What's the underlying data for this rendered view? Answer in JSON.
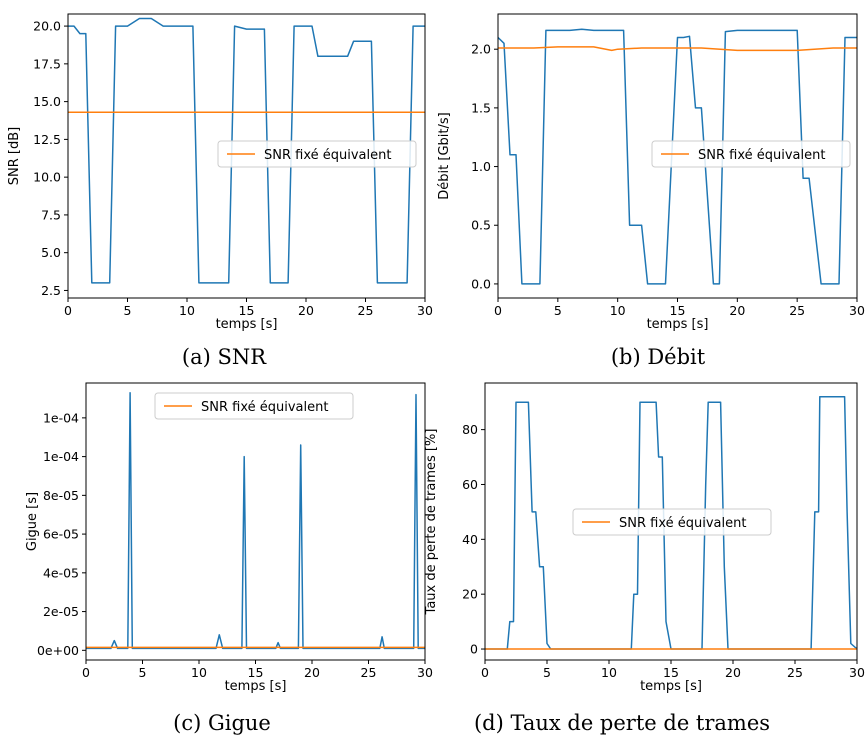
{
  "chart_data": [
    {
      "type": "line",
      "caption": "(a) SNR",
      "xlabel": "temps [s]",
      "ylabel": "SNR [dB]",
      "xlim": [
        0,
        30
      ],
      "ylim": [
        2.0,
        20.8
      ],
      "xticks": [
        0,
        5,
        10,
        15,
        20,
        25,
        30
      ],
      "xtick_labels": [
        "0",
        "5",
        "10",
        "15",
        "20",
        "25",
        "30"
      ],
      "yticks": [
        2.5,
        5.0,
        7.5,
        10.0,
        12.5,
        15.0,
        17.5,
        20.0
      ],
      "ytick_labels": [
        "2.5",
        "5.0",
        "7.5",
        "10.0",
        "12.5",
        "15.0",
        "17.5",
        "20.0"
      ],
      "legend": {
        "label": "SNR fixé équivalent",
        "placement": "center-right"
      },
      "series": [
        {
          "color": "#1f77b4",
          "x": [
            0,
            0.5,
            1,
            1.5,
            2,
            3.5,
            4,
            5,
            6,
            7,
            8,
            9,
            10,
            10.5,
            11,
            12,
            13,
            13.5,
            14,
            15,
            16,
            16.5,
            17,
            18,
            18.5,
            19,
            20,
            20.5,
            21,
            22,
            23,
            23.5,
            24,
            25,
            25.5,
            26,
            27,
            28,
            28.5,
            29,
            30
          ],
          "y": [
            20,
            20,
            19.5,
            19.5,
            3,
            3,
            20,
            20,
            20.5,
            20.5,
            20,
            20,
            20,
            20,
            3,
            3,
            3,
            3,
            20,
            19.8,
            19.8,
            19.8,
            3,
            3,
            3,
            20,
            20,
            20,
            18,
            18,
            18,
            18,
            19,
            19,
            19,
            3,
            3,
            3,
            3,
            20,
            20
          ]
        },
        {
          "color": "#ff7f0e",
          "x": [
            0,
            30
          ],
          "y": [
            14.3,
            14.3
          ]
        }
      ]
    },
    {
      "type": "line",
      "caption": "(b) Débit",
      "xlabel": "temps [s]",
      "ylabel": "Débit [Gbit/s]",
      "xlim": [
        0,
        30
      ],
      "ylim": [
        -0.12,
        2.3
      ],
      "xticks": [
        0,
        5,
        10,
        15,
        20,
        25,
        30
      ],
      "xtick_labels": [
        "0",
        "5",
        "10",
        "15",
        "20",
        "25",
        "30"
      ],
      "yticks": [
        0.0,
        0.5,
        1.0,
        1.5,
        2.0
      ],
      "ytick_labels": [
        "0.0",
        "0.5",
        "1.0",
        "1.5",
        "2.0"
      ],
      "legend": {
        "label": "SNR fixé équivalent",
        "placement": "center-right"
      },
      "series": [
        {
          "color": "#1f77b4",
          "x": [
            0,
            0.5,
            1,
            1.5,
            2,
            3.5,
            4,
            5,
            6,
            7,
            8,
            9,
            10,
            10.5,
            11,
            12,
            12.5,
            13,
            14,
            15,
            15.5,
            16,
            16.5,
            17,
            18,
            18.5,
            19,
            20,
            21,
            22,
            23,
            24,
            25,
            25.5,
            26,
            27,
            28,
            28.5,
            29,
            30
          ],
          "y": [
            2.1,
            2.05,
            1.1,
            1.1,
            0,
            0,
            2.16,
            2.16,
            2.16,
            2.17,
            2.16,
            2.16,
            2.16,
            2.16,
            0.5,
            0.5,
            0,
            0,
            0,
            2.1,
            2.1,
            2.11,
            1.5,
            1.5,
            0,
            0,
            2.15,
            2.16,
            2.16,
            2.16,
            2.16,
            2.16,
            2.16,
            0.9,
            0.9,
            0,
            0,
            0,
            2.1,
            2.1
          ]
        },
        {
          "color": "#ff7f0e",
          "x": [
            0,
            3,
            5,
            8,
            9.5,
            10,
            12,
            15,
            17,
            20,
            23,
            25,
            28,
            30
          ],
          "y": [
            2.01,
            2.01,
            2.02,
            2.02,
            1.99,
            2.0,
            2.01,
            2.01,
            2.01,
            1.99,
            1.99,
            1.99,
            2.01,
            2.01
          ]
        }
      ]
    },
    {
      "type": "line",
      "caption": "(c) Gigue",
      "xlabel": "temps [s]",
      "ylabel": "Gigue [s]",
      "xlim": [
        0,
        30
      ],
      "ylim": [
        -5e-06,
        0.000138
      ],
      "xticks": [
        0,
        5,
        10,
        15,
        20,
        25,
        30
      ],
      "xtick_labels": [
        "0",
        "5",
        "10",
        "15",
        "20",
        "25",
        "30"
      ],
      "yticks": [
        0,
        2e-05,
        4e-05,
        6e-05,
        8e-05,
        0.0001,
        0.00012
      ],
      "ytick_labels": [
        "0e+00",
        "2e-05",
        "4e-05",
        "6e-05",
        "8e-05",
        "1e-04",
        "1e-04"
      ],
      "legend": {
        "label": "SNR fixé équivalent",
        "placement": "top-center"
      },
      "series": [
        {
          "color": "#1f77b4",
          "x": [
            0,
            2.2,
            2.5,
            2.8,
            3.7,
            3.9,
            4.1,
            5,
            10,
            11.5,
            11.8,
            12.1,
            13.8,
            14,
            14.2,
            16.8,
            17,
            17.2,
            18.8,
            19,
            19.2,
            25,
            26,
            26.2,
            26.4,
            28,
            29,
            29.2,
            29.4,
            30
          ],
          "y": [
            1e-06,
            1e-06,
            5e-06,
            1e-06,
            1e-06,
            0.000133,
            1e-06,
            1e-06,
            1e-06,
            1e-06,
            8e-06,
            1e-06,
            1e-06,
            0.0001,
            1e-06,
            1e-06,
            4e-06,
            1e-06,
            1e-06,
            0.000106,
            1e-06,
            1e-06,
            1e-06,
            7e-06,
            1e-06,
            1e-06,
            1e-06,
            0.000132,
            1e-06,
            1e-06
          ]
        },
        {
          "color": "#ff7f0e",
          "x": [
            0,
            30
          ],
          "y": [
            1.5e-06,
            1.5e-06
          ]
        }
      ]
    },
    {
      "type": "line",
      "caption": "(d) Taux de perte de trames",
      "xlabel": "temps [s]",
      "ylabel": "Taux de perte de trames [%]",
      "xlim": [
        0,
        30
      ],
      "ylim": [
        -4,
        97
      ],
      "xticks": [
        0,
        5,
        10,
        15,
        20,
        25,
        30
      ],
      "xtick_labels": [
        "0",
        "5",
        "10",
        "15",
        "20",
        "25",
        "30"
      ],
      "yticks": [
        0,
        20,
        40,
        60,
        80
      ],
      "ytick_labels": [
        "0",
        "20",
        "40",
        "60",
        "80"
      ],
      "legend": {
        "label": "SNR fixé équivalent",
        "placement": "center-right"
      },
      "series": [
        {
          "color": "#1f77b4",
          "x": [
            0,
            1.8,
            2,
            2.3,
            2.5,
            3.5,
            3.8,
            4.1,
            4.4,
            4.7,
            5,
            5.3,
            7,
            10,
            11.8,
            12,
            12.3,
            12.5,
            13.8,
            14,
            14.3,
            14.6,
            15,
            17,
            17.5,
            17.8,
            18,
            19,
            19.3,
            19.6,
            20,
            25,
            26.3,
            26.6,
            26.9,
            27,
            29,
            29.2,
            29.5,
            30
          ],
          "y": [
            0,
            0,
            10,
            10,
            90,
            90,
            50,
            50,
            30,
            30,
            2,
            0,
            0,
            0,
            0,
            20,
            20,
            90,
            90,
            70,
            70,
            10,
            0,
            0,
            0,
            60,
            90,
            90,
            30,
            0,
            0,
            0,
            0,
            50,
            50,
            92,
            92,
            50,
            2,
            0
          ]
        },
        {
          "color": "#ff7f0e",
          "x": [
            0,
            30
          ],
          "y": [
            0,
            0
          ]
        }
      ]
    }
  ]
}
